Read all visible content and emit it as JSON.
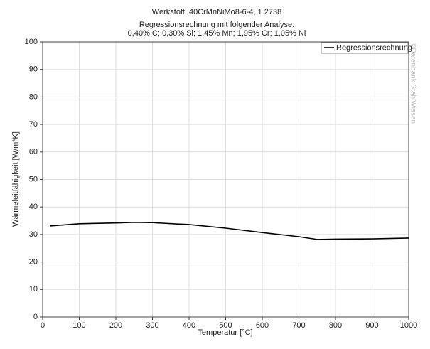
{
  "chart_data": {
    "type": "line",
    "title": "Werkstoff: 40CrMnNiMo8-6-4, 1.2738",
    "subtitle": [
      "Regressionsrechnung mit folgender Analyse:",
      "0,40% C; 0,30% Si; 1,45% Mn; 1,95% Cr; 1,05% Ni"
    ],
    "x_label": "Temperatur [°C]",
    "y_label": "Wärmeleitfähigkeit [W/m*K]",
    "watermark": "©Datenbank StahlWissen",
    "x": [
      20,
      100,
      200,
      250,
      300,
      400,
      500,
      600,
      700,
      750,
      800,
      900,
      1000
    ],
    "series": [
      {
        "name": "Regressionsrechnung",
        "color": "#000000",
        "values": [
          33.1,
          33.9,
          34.2,
          34.4,
          34.3,
          33.6,
          32.3,
          30.7,
          29.2,
          28.2,
          28.3,
          28.4,
          28.7
        ]
      }
    ],
    "xlim": [
      0,
      1000
    ],
    "xticks": [
      0,
      100,
      200,
      300,
      400,
      500,
      600,
      700,
      800,
      900,
      1000
    ],
    "ylim": [
      0,
      100
    ],
    "yticks": [
      0,
      10,
      20,
      30,
      40,
      50,
      60,
      70,
      80,
      90,
      100
    ],
    "grid": true,
    "legend": "top-right"
  }
}
